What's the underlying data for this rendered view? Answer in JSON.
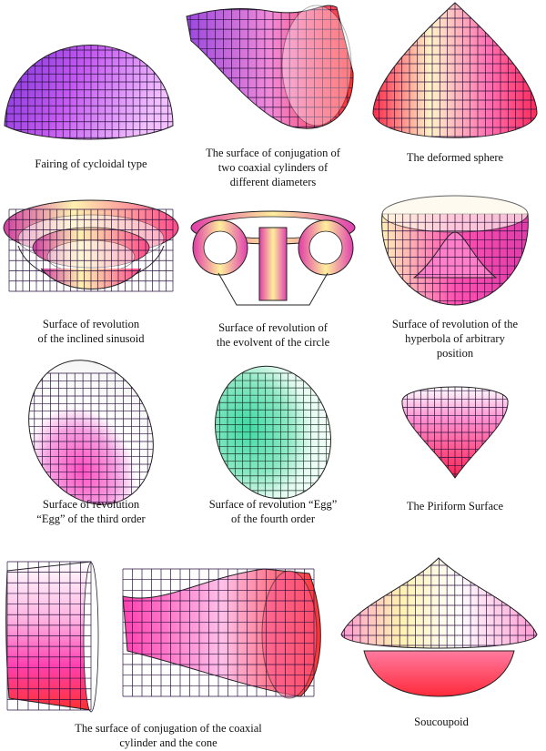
{
  "surfaces": [
    {
      "id": "fairing",
      "caption": [
        "Fairing of cycloidal type"
      ],
      "colors": [
        "#6a2fd0",
        "#c85cf0",
        "#f5b8ff"
      ]
    },
    {
      "id": "conj-cyl",
      "caption": [
        "The surface of conjugation of",
        "two coaxial cylinders of",
        "different diameters"
      ],
      "colors": [
        "#a24de0",
        "#f07ad0",
        "#ff3030"
      ]
    },
    {
      "id": "deformed-sphere",
      "caption": [
        "The deformed sphere"
      ],
      "colors": [
        "#ff2a4a",
        "#fff4c8",
        "#ff60a0"
      ]
    },
    {
      "id": "inclined-sinusoid",
      "caption": [
        "Surface of revolution",
        "of the inclined sinusoid"
      ],
      "colors": [
        "#d040a0",
        "#fff2b0",
        "#ff4a8a"
      ]
    },
    {
      "id": "evolvent",
      "caption": [
        "Surface of revolution of",
        "the evolvent of the circle"
      ],
      "colors": [
        "#e03ca8",
        "#ffef9a",
        "#e040b0"
      ]
    },
    {
      "id": "hyperbola",
      "caption": [
        "Surface of revolution of the",
        "hyperbola of arbitrary",
        "position"
      ],
      "colors": [
        "#fff0b8",
        "#ff50b0",
        "#e03ca8"
      ]
    },
    {
      "id": "egg3",
      "caption": [
        "Surface of revolution",
        "“Egg” of the third order"
      ],
      "colors": [
        "#ffffff",
        "#e84ac8",
        "#ff9a60"
      ]
    },
    {
      "id": "egg4",
      "caption": [
        "Surface of revolution “Egg”",
        "of the fourth order"
      ],
      "colors": [
        "#3fd9a6",
        "#b8f5dc",
        "#ffffff"
      ]
    },
    {
      "id": "piriform",
      "caption": [
        "The Piriform Surface"
      ],
      "colors": [
        "#ffffff",
        "#ff60c0",
        "#ff2050"
      ]
    },
    {
      "id": "cyl-cone",
      "caption": [
        "The surface of conjugation of the coaxial",
        "cylinder and the cone"
      ],
      "colors": [
        "#ffffff",
        "#ff40b0",
        "#ff3030"
      ]
    },
    {
      "id": "soucoupoid",
      "caption": [
        "Soucoupoid"
      ],
      "colors": [
        "#ffffff",
        "#fff2b0",
        "#ff2a3a"
      ]
    }
  ]
}
